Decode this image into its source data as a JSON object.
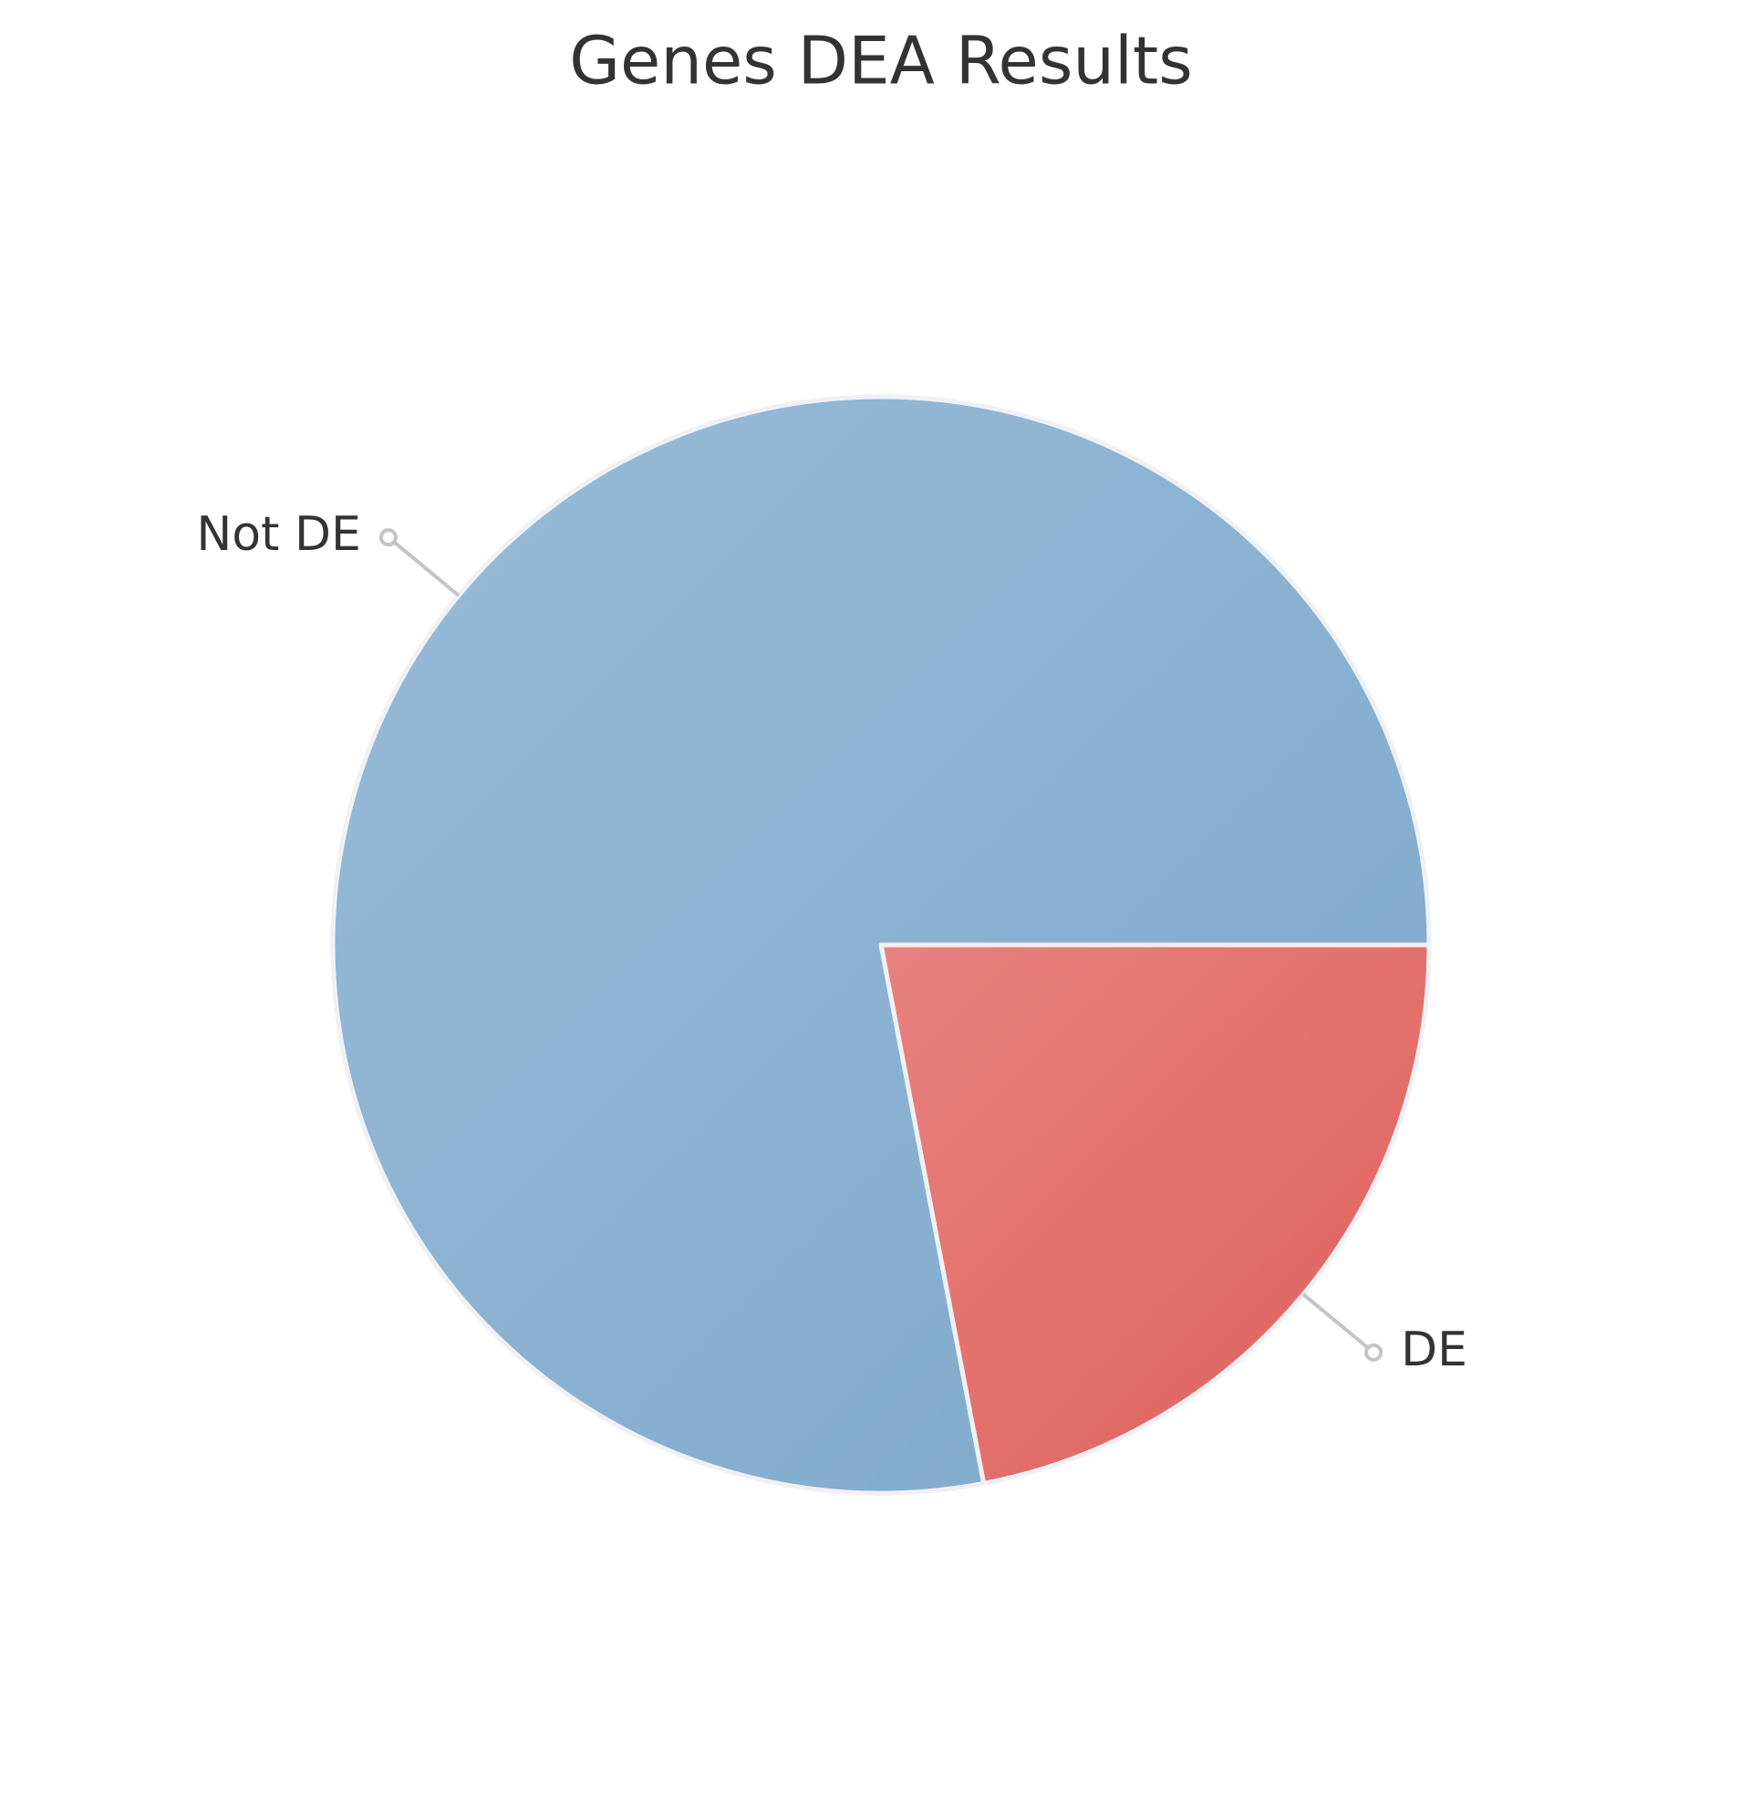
{
  "chart_data": {
    "type": "pie",
    "title": "Genes DEA Results",
    "categories": [
      "DE",
      "Not DE"
    ],
    "values": [
      22,
      78
    ],
    "colors": [
      "#e05f5b",
      "#7ca8cb"
    ]
  }
}
